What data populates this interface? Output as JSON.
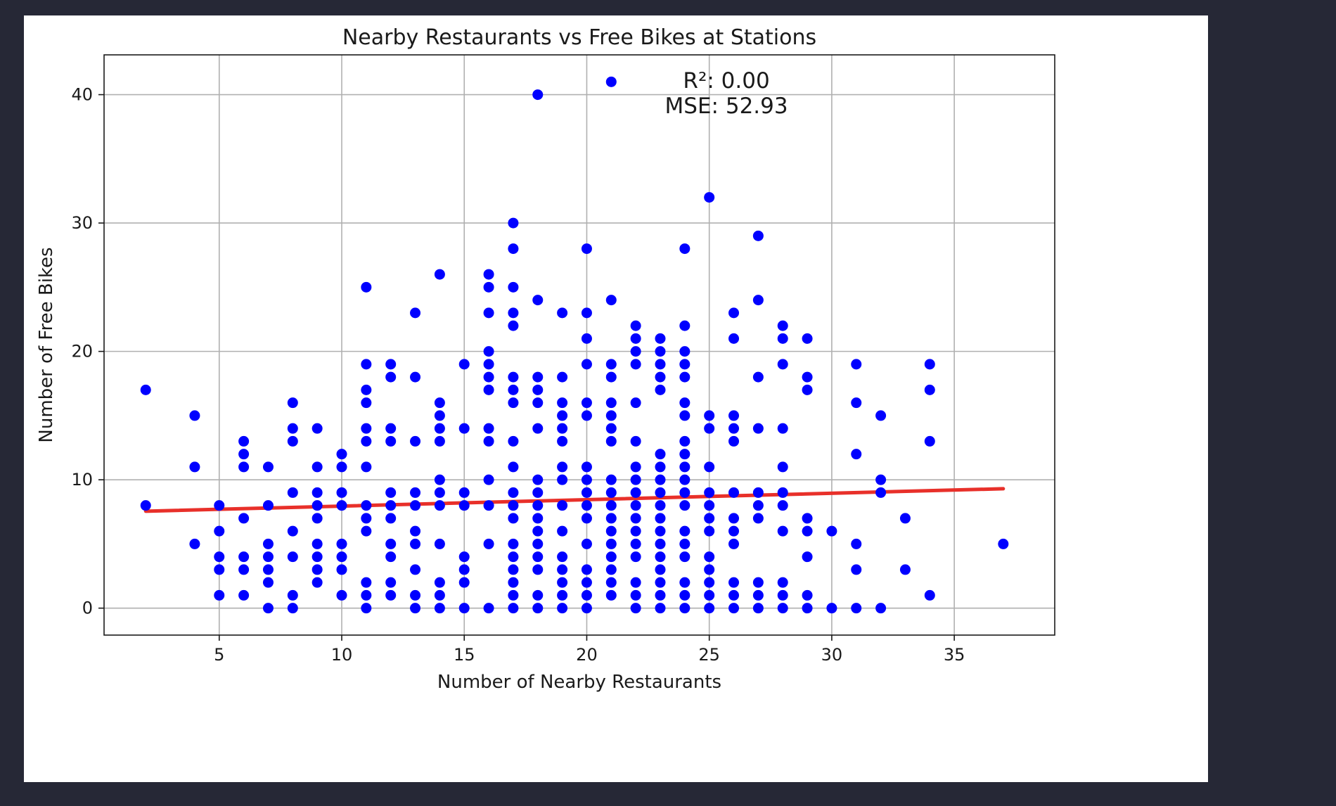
{
  "chart_data": {
    "type": "scatter",
    "title": "Nearby Restaurants vs Free Bikes at Stations",
    "xlabel": "Number of Nearby Restaurants",
    "ylabel": "Number of Free Bikes",
    "xlim": [
      0.3,
      39.1
    ],
    "ylim": [
      -2.1,
      43.1
    ],
    "xticks": [
      5,
      10,
      15,
      20,
      25,
      30,
      35
    ],
    "yticks": [
      0,
      10,
      20,
      30,
      40
    ],
    "grid": true,
    "point_color": "#0000ff",
    "line_color": "#e8302a",
    "annotation": {
      "r2": "R²: 0.00",
      "mse": "MSE: 52.93",
      "x": 25.7,
      "y": 39.2
    },
    "regression": {
      "x": [
        2,
        37
      ],
      "y": [
        7.55,
        9.3
      ]
    },
    "points": [
      [
        2,
        17
      ],
      [
        2,
        8
      ],
      [
        4,
        15
      ],
      [
        4,
        11
      ],
      [
        4,
        5
      ],
      [
        5,
        8
      ],
      [
        5,
        6
      ],
      [
        5,
        4
      ],
      [
        5,
        3
      ],
      [
        5,
        1
      ],
      [
        6,
        13
      ],
      [
        6,
        12
      ],
      [
        6,
        11
      ],
      [
        6,
        7
      ],
      [
        6,
        4
      ],
      [
        6,
        3
      ],
      [
        6,
        1
      ],
      [
        7,
        11
      ],
      [
        7,
        8
      ],
      [
        7,
        5
      ],
      [
        7,
        4
      ],
      [
        7,
        3
      ],
      [
        7,
        2
      ],
      [
        7,
        0
      ],
      [
        8,
        16
      ],
      [
        8,
        14
      ],
      [
        8,
        13
      ],
      [
        8,
        9
      ],
      [
        8,
        6
      ],
      [
        8,
        4
      ],
      [
        8,
        1
      ],
      [
        8,
        0
      ],
      [
        9,
        14
      ],
      [
        9,
        11
      ],
      [
        9,
        9
      ],
      [
        9,
        8
      ],
      [
        9,
        7
      ],
      [
        9,
        5
      ],
      [
        9,
        4
      ],
      [
        9,
        3
      ],
      [
        9,
        2
      ],
      [
        10,
        12
      ],
      [
        10,
        11
      ],
      [
        10,
        9
      ],
      [
        10,
        8
      ],
      [
        10,
        5
      ],
      [
        10,
        4
      ],
      [
        10,
        3
      ],
      [
        10,
        1
      ],
      [
        11,
        25
      ],
      [
        11,
        19
      ],
      [
        11,
        17
      ],
      [
        11,
        16
      ],
      [
        11,
        14
      ],
      [
        11,
        13
      ],
      [
        11,
        11
      ],
      [
        11,
        8
      ],
      [
        11,
        7
      ],
      [
        11,
        6
      ],
      [
        11,
        2
      ],
      [
        11,
        1
      ],
      [
        11,
        0
      ],
      [
        12,
        19
      ],
      [
        12,
        18
      ],
      [
        12,
        14
      ],
      [
        12,
        13
      ],
      [
        12,
        9
      ],
      [
        12,
        8
      ],
      [
        12,
        7
      ],
      [
        12,
        5
      ],
      [
        12,
        4
      ],
      [
        12,
        2
      ],
      [
        12,
        1
      ],
      [
        13,
        23
      ],
      [
        13,
        18
      ],
      [
        13,
        13
      ],
      [
        13,
        9
      ],
      [
        13,
        8
      ],
      [
        13,
        6
      ],
      [
        13,
        5
      ],
      [
        13,
        3
      ],
      [
        13,
        1
      ],
      [
        13,
        0
      ],
      [
        14,
        26
      ],
      [
        14,
        16
      ],
      [
        14,
        15
      ],
      [
        14,
        14
      ],
      [
        14,
        13
      ],
      [
        14,
        10
      ],
      [
        14,
        9
      ],
      [
        14,
        8
      ],
      [
        14,
        5
      ],
      [
        14,
        2
      ],
      [
        14,
        1
      ],
      [
        14,
        0
      ],
      [
        15,
        19
      ],
      [
        15,
        14
      ],
      [
        15,
        9
      ],
      [
        15,
        8
      ],
      [
        15,
        4
      ],
      [
        15,
        3
      ],
      [
        15,
        2
      ],
      [
        15,
        0
      ],
      [
        16,
        26
      ],
      [
        16,
        25
      ],
      [
        16,
        23
      ],
      [
        16,
        20
      ],
      [
        16,
        19
      ],
      [
        16,
        18
      ],
      [
        16,
        17
      ],
      [
        16,
        14
      ],
      [
        16,
        13
      ],
      [
        16,
        10
      ],
      [
        16,
        8
      ],
      [
        16,
        5
      ],
      [
        16,
        0
      ],
      [
        17,
        30
      ],
      [
        17,
        28
      ],
      [
        17,
        25
      ],
      [
        17,
        23
      ],
      [
        17,
        22
      ],
      [
        17,
        18
      ],
      [
        17,
        17
      ],
      [
        17,
        16
      ],
      [
        17,
        13
      ],
      [
        17,
        11
      ],
      [
        17,
        9
      ],
      [
        17,
        8
      ],
      [
        17,
        7
      ],
      [
        17,
        5
      ],
      [
        17,
        4
      ],
      [
        17,
        3
      ],
      [
        17,
        2
      ],
      [
        17,
        1
      ],
      [
        17,
        0
      ],
      [
        18,
        40
      ],
      [
        18,
        24
      ],
      [
        18,
        18
      ],
      [
        18,
        17
      ],
      [
        18,
        16
      ],
      [
        18,
        14
      ],
      [
        18,
        10
      ],
      [
        18,
        9
      ],
      [
        18,
        8
      ],
      [
        18,
        7
      ],
      [
        18,
        6
      ],
      [
        18,
        5
      ],
      [
        18,
        4
      ],
      [
        18,
        3
      ],
      [
        18,
        1
      ],
      [
        18,
        0
      ],
      [
        19,
        23
      ],
      [
        19,
        18
      ],
      [
        19,
        16
      ],
      [
        19,
        15
      ],
      [
        19,
        14
      ],
      [
        19,
        13
      ],
      [
        19,
        11
      ],
      [
        19,
        10
      ],
      [
        19,
        8
      ],
      [
        19,
        6
      ],
      [
        19,
        4
      ],
      [
        19,
        3
      ],
      [
        19,
        2
      ],
      [
        19,
        1
      ],
      [
        19,
        0
      ],
      [
        20,
        28
      ],
      [
        20,
        23
      ],
      [
        20,
        21
      ],
      [
        20,
        19
      ],
      [
        20,
        16
      ],
      [
        20,
        15
      ],
      [
        20,
        11
      ],
      [
        20,
        10
      ],
      [
        20,
        9
      ],
      [
        20,
        8
      ],
      [
        20,
        7
      ],
      [
        20,
        5
      ],
      [
        20,
        3
      ],
      [
        20,
        2
      ],
      [
        20,
        1
      ],
      [
        20,
        0
      ],
      [
        21,
        41
      ],
      [
        21,
        24
      ],
      [
        21,
        19
      ],
      [
        21,
        18
      ],
      [
        21,
        16
      ],
      [
        21,
        15
      ],
      [
        21,
        14
      ],
      [
        21,
        13
      ],
      [
        21,
        10
      ],
      [
        21,
        9
      ],
      [
        21,
        8
      ],
      [
        21,
        7
      ],
      [
        21,
        6
      ],
      [
        21,
        5
      ],
      [
        21,
        4
      ],
      [
        21,
        3
      ],
      [
        21,
        2
      ],
      [
        21,
        1
      ],
      [
        22,
        22
      ],
      [
        22,
        21
      ],
      [
        22,
        20
      ],
      [
        22,
        19
      ],
      [
        22,
        16
      ],
      [
        22,
        13
      ],
      [
        22,
        11
      ],
      [
        22,
        10
      ],
      [
        22,
        9
      ],
      [
        22,
        8
      ],
      [
        22,
        7
      ],
      [
        22,
        6
      ],
      [
        22,
        5
      ],
      [
        22,
        4
      ],
      [
        22,
        2
      ],
      [
        22,
        1
      ],
      [
        22,
        0
      ],
      [
        23,
        21
      ],
      [
        23,
        20
      ],
      [
        23,
        19
      ],
      [
        23,
        18
      ],
      [
        23,
        17
      ],
      [
        23,
        12
      ],
      [
        23,
        11
      ],
      [
        23,
        10
      ],
      [
        23,
        9
      ],
      [
        23,
        8
      ],
      [
        23,
        7
      ],
      [
        23,
        6
      ],
      [
        23,
        5
      ],
      [
        23,
        4
      ],
      [
        23,
        3
      ],
      [
        23,
        2
      ],
      [
        23,
        1
      ],
      [
        23,
        0
      ],
      [
        24,
        28
      ],
      [
        24,
        22
      ],
      [
        24,
        20
      ],
      [
        24,
        19
      ],
      [
        24,
        18
      ],
      [
        24,
        16
      ],
      [
        24,
        15
      ],
      [
        24,
        13
      ],
      [
        24,
        12
      ],
      [
        24,
        11
      ],
      [
        24,
        10
      ],
      [
        24,
        9
      ],
      [
        24,
        8
      ],
      [
        24,
        6
      ],
      [
        24,
        5
      ],
      [
        24,
        4
      ],
      [
        24,
        2
      ],
      [
        24,
        1
      ],
      [
        24,
        0
      ],
      [
        25,
        32
      ],
      [
        25,
        15
      ],
      [
        25,
        14
      ],
      [
        25,
        11
      ],
      [
        25,
        9
      ],
      [
        25,
        8
      ],
      [
        25,
        7
      ],
      [
        25,
        6
      ],
      [
        25,
        4
      ],
      [
        25,
        3
      ],
      [
        25,
        2
      ],
      [
        25,
        1
      ],
      [
        25,
        0
      ],
      [
        26,
        23
      ],
      [
        26,
        21
      ],
      [
        26,
        15
      ],
      [
        26,
        14
      ],
      [
        26,
        13
      ],
      [
        26,
        9
      ],
      [
        26,
        7
      ],
      [
        26,
        6
      ],
      [
        26,
        5
      ],
      [
        26,
        2
      ],
      [
        26,
        1
      ],
      [
        26,
        0
      ],
      [
        27,
        29
      ],
      [
        27,
        24
      ],
      [
        27,
        18
      ],
      [
        27,
        14
      ],
      [
        27,
        9
      ],
      [
        27,
        8
      ],
      [
        27,
        7
      ],
      [
        27,
        2
      ],
      [
        27,
        1
      ],
      [
        27,
        0
      ],
      [
        28,
        22
      ],
      [
        28,
        21
      ],
      [
        28,
        19
      ],
      [
        28,
        14
      ],
      [
        28,
        11
      ],
      [
        28,
        9
      ],
      [
        28,
        8
      ],
      [
        28,
        6
      ],
      [
        28,
        2
      ],
      [
        28,
        1
      ],
      [
        28,
        0
      ],
      [
        29,
        21
      ],
      [
        29,
        18
      ],
      [
        29,
        17
      ],
      [
        29,
        7
      ],
      [
        29,
        6
      ],
      [
        29,
        4
      ],
      [
        29,
        1
      ],
      [
        29,
        0
      ],
      [
        30,
        6
      ],
      [
        30,
        0
      ],
      [
        31,
        19
      ],
      [
        31,
        16
      ],
      [
        31,
        12
      ],
      [
        31,
        5
      ],
      [
        31,
        3
      ],
      [
        31,
        0
      ],
      [
        32,
        15
      ],
      [
        32,
        10
      ],
      [
        32,
        9
      ],
      [
        32,
        0
      ],
      [
        33,
        7
      ],
      [
        33,
        3
      ],
      [
        34,
        19
      ],
      [
        34,
        17
      ],
      [
        34,
        13
      ],
      [
        34,
        1
      ],
      [
        37,
        5
      ]
    ]
  }
}
